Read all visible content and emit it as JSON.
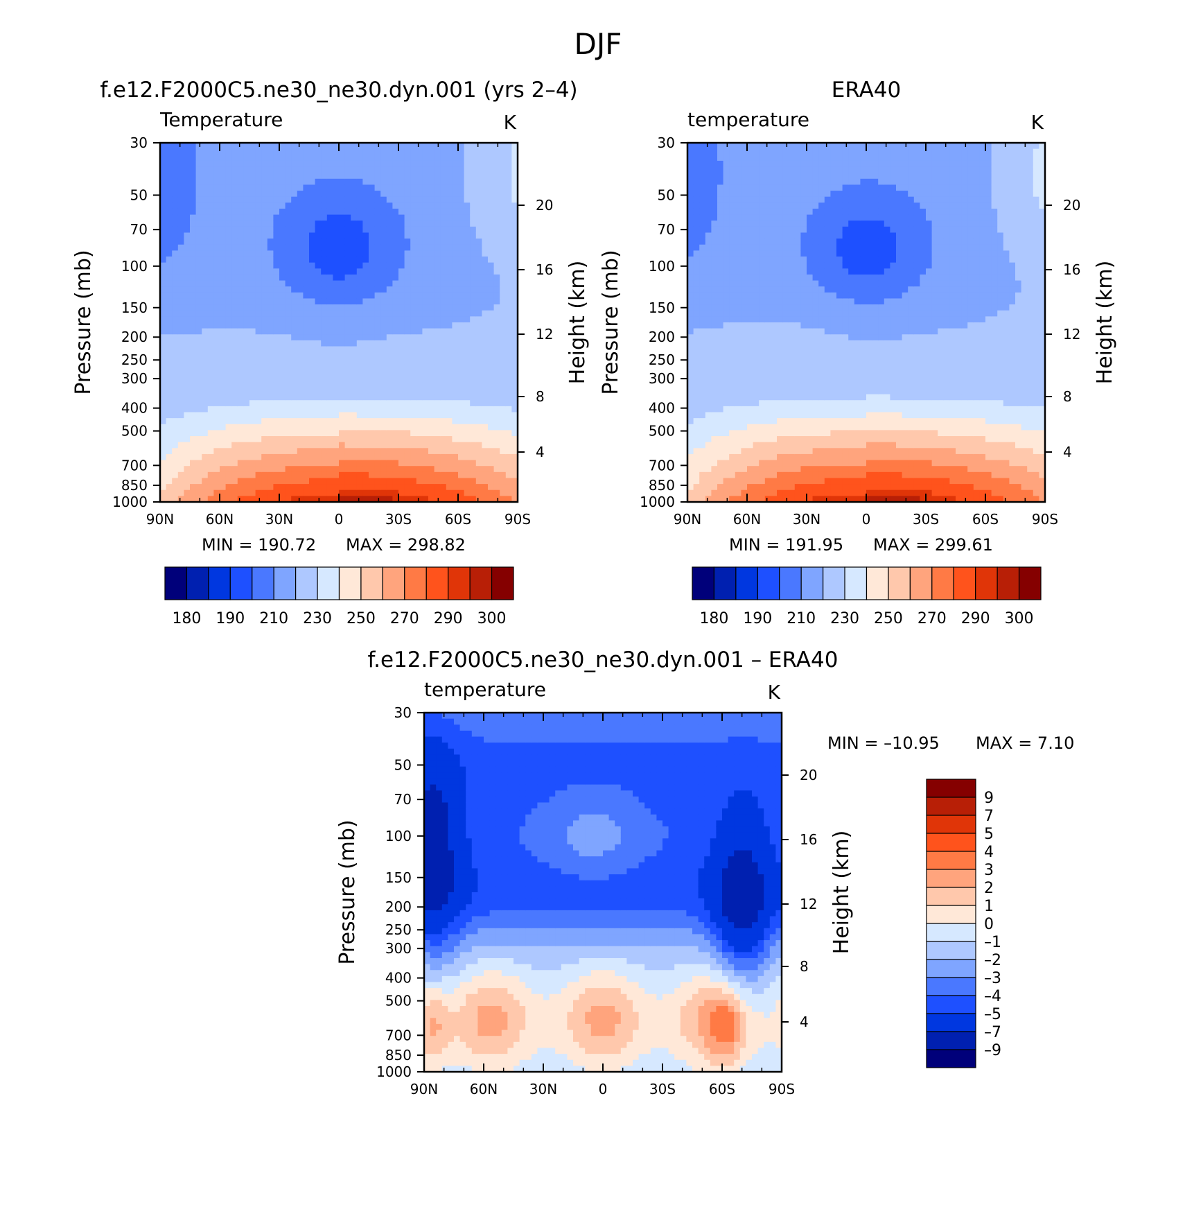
{
  "figure": {
    "title": "DJF"
  },
  "colors": {
    "temperature": [
      "#00007a",
      "#0020b0",
      "#0037e0",
      "#1e50ff",
      "#4a78ff",
      "#7fa5ff",
      "#aec8ff",
      "#d6e8ff",
      "#ffe8d8",
      "#ffc8ac",
      "#ffa47d",
      "#ff7a45",
      "#ff531c",
      "#e03508",
      "#b81f06",
      "#850000"
    ],
    "difference": [
      "#850000",
      "#b81f06",
      "#e03508",
      "#ff531c",
      "#ff7a45",
      "#ffa47d",
      "#ffc8ac",
      "#ffe8d8",
      "#d6e8ff",
      "#aec8ff",
      "#7fa5ff",
      "#4a78ff",
      "#1e50ff",
      "#0037e0",
      "#0020b0",
      "#00007a"
    ]
  },
  "chart_data": [
    {
      "type": "contour",
      "panel": "model",
      "title": "f.e12.F2000C5.ne30_ne30.dyn.001 (yrs 2–4)",
      "variable": "Temperature",
      "units": "K",
      "ylabel": "Pressure (mb)",
      "ylabel_right": "Height (km)",
      "xticks": [
        "90N",
        "60N",
        "30N",
        "0",
        "30S",
        "60S",
        "90S"
      ],
      "yticks": [
        "30",
        "50",
        "70",
        "100",
        "150",
        "200",
        "250",
        "300",
        "400",
        "500",
        "700",
        "850",
        "1000"
      ],
      "yticks_right": [
        "20",
        "16",
        "12",
        "8",
        "4"
      ],
      "xlim": [
        -90,
        90
      ],
      "ylim": [
        30,
        1000
      ],
      "min_label": "MIN = 190.72",
      "max_label": "MAX = 298.82",
      "min": 190.72,
      "max": 298.82,
      "contour_levels": [
        180,
        185,
        190,
        200,
        210,
        220,
        230,
        240,
        250,
        260,
        270,
        280,
        290,
        295,
        300
      ],
      "colorbar_labels": [
        "180",
        "190",
        "210",
        "230",
        "250",
        "270",
        "290",
        "300"
      ]
    },
    {
      "type": "contour",
      "panel": "obs",
      "title": "ERA40",
      "variable": "temperature",
      "units": "K",
      "ylabel": "Pressure (mb)",
      "ylabel_right": "Height (km)",
      "xticks": [
        "90N",
        "60N",
        "30N",
        "0",
        "30S",
        "60S",
        "90S"
      ],
      "yticks": [
        "30",
        "50",
        "70",
        "100",
        "150",
        "200",
        "250",
        "300",
        "400",
        "500",
        "700",
        "850",
        "1000"
      ],
      "yticks_right": [
        "20",
        "16",
        "12",
        "8",
        "4"
      ],
      "xlim": [
        -90,
        90
      ],
      "ylim": [
        30,
        1000
      ],
      "min_label": "MIN = 191.95",
      "max_label": "MAX = 299.61",
      "min": 191.95,
      "max": 299.61,
      "contour_levels": [
        180,
        185,
        190,
        200,
        210,
        220,
        230,
        240,
        250,
        260,
        270,
        280,
        290,
        295,
        300
      ],
      "colorbar_labels": [
        "180",
        "190",
        "210",
        "230",
        "250",
        "270",
        "290",
        "300"
      ]
    },
    {
      "type": "contour",
      "panel": "difference",
      "title": "f.e12.F2000C5.ne30_ne30.dyn.001 – ERA40",
      "variable": "temperature",
      "units": "K",
      "ylabel": "Pressure (mb)",
      "ylabel_right": "Height (km)",
      "xticks": [
        "90N",
        "60N",
        "30N",
        "0",
        "30S",
        "60S",
        "90S"
      ],
      "yticks": [
        "30",
        "50",
        "70",
        "100",
        "150",
        "200",
        "250",
        "300",
        "400",
        "500",
        "700",
        "850",
        "1000"
      ],
      "yticks_right": [
        "20",
        "16",
        "12",
        "8",
        "4"
      ],
      "xlim": [
        -90,
        90
      ],
      "ylim": [
        30,
        1000
      ],
      "min_label": "MIN = –10.95",
      "max_label": "MAX = 7.10",
      "min": -10.95,
      "max": 7.1,
      "contour_levels": [
        9,
        7,
        5,
        4,
        3,
        2,
        1,
        0,
        -1,
        -2,
        -3,
        -4,
        -5,
        -7,
        -9
      ],
      "colorbar_labels": [
        "9",
        "7",
        "5",
        "4",
        "3",
        "2",
        "1",
        "0",
        "–1",
        "–2",
        "–3",
        "–4",
        "–5",
        "–7",
        "–9"
      ]
    }
  ]
}
